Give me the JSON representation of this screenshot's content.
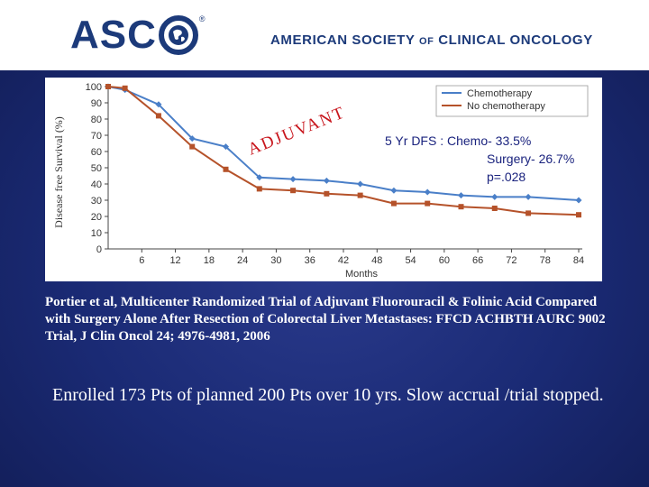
{
  "header": {
    "logo_text": "ASC",
    "logo_icon": "globe-o-icon",
    "registered_mark": "®",
    "org_name_part1": "AMERICAN SOCIETY ",
    "org_name_of": "OF",
    "org_name_part2": " CLINICAL ONCOLOGY",
    "text_color": "#1c3a7a"
  },
  "slide": {
    "stats": {
      "line1": "5 Yr DFS : Chemo- 33.5%",
      "line2": "Surgery- 26.7%",
      "line3": "p=.028"
    },
    "citation": "Portier et al, Multicenter Randomized Trial of Adjuvant Fluorouracil & Folinic Acid Compared with Surgery Alone After Resection of Colorectal Liver Metastases: FFCD ACHBTH AURC 9002 Trial, J Clin Oncol 24; 4976-4981, 2006",
    "enrolled": "Enrolled 173 Pts of planned 200 Pts over 10 yrs. Slow accrual /trial stopped.",
    "background_color": "#1a2a74",
    "text_color": "#ffffff"
  },
  "chart_data": {
    "type": "line",
    "title": "",
    "xlabel": "Months",
    "ylabel": "Disease free  Survival (%)",
    "xlim": [
      0,
      84
    ],
    "ylim": [
      0,
      100
    ],
    "x_ticks": [
      6,
      12,
      18,
      24,
      30,
      36,
      42,
      48,
      54,
      60,
      66,
      72,
      78,
      84
    ],
    "x_tick_labels": [
      "6",
      "12",
      "18",
      "24",
      "30",
      "36",
      "42",
      "48",
      "54",
      "60",
      "66",
      "72",
      "78",
      "84"
    ],
    "y_ticks": [
      0,
      10,
      20,
      30,
      40,
      50,
      60,
      70,
      80,
      90,
      100
    ],
    "y_tick_labels": [
      "0",
      "10",
      "20",
      "30",
      "40",
      "50",
      "60",
      "70",
      "80",
      "90",
      "100"
    ],
    "annotation": "ADJUVANT",
    "annotation_color": "#c8161d",
    "stats_color": "#1a237e",
    "grid": false,
    "legend_position": "top-right",
    "series": [
      {
        "name": "Chemotherapy",
        "color": "#4a7fc8",
        "x": [
          0,
          3,
          9,
          15,
          21,
          27,
          33,
          39,
          45,
          51,
          57,
          63,
          69,
          75,
          84
        ],
        "y": [
          100,
          98,
          89,
          68,
          63,
          44,
          43,
          42,
          40,
          36,
          35,
          33,
          32,
          32,
          30
        ]
      },
      {
        "name": "No chemotherapy",
        "color": "#b5522a",
        "x": [
          0,
          3,
          9,
          15,
          21,
          27,
          33,
          39,
          45,
          51,
          57,
          63,
          69,
          75,
          84
        ],
        "y": [
          100,
          99,
          82,
          63,
          49,
          37,
          36,
          34,
          33,
          28,
          28,
          26,
          25,
          22,
          21
        ]
      }
    ]
  }
}
